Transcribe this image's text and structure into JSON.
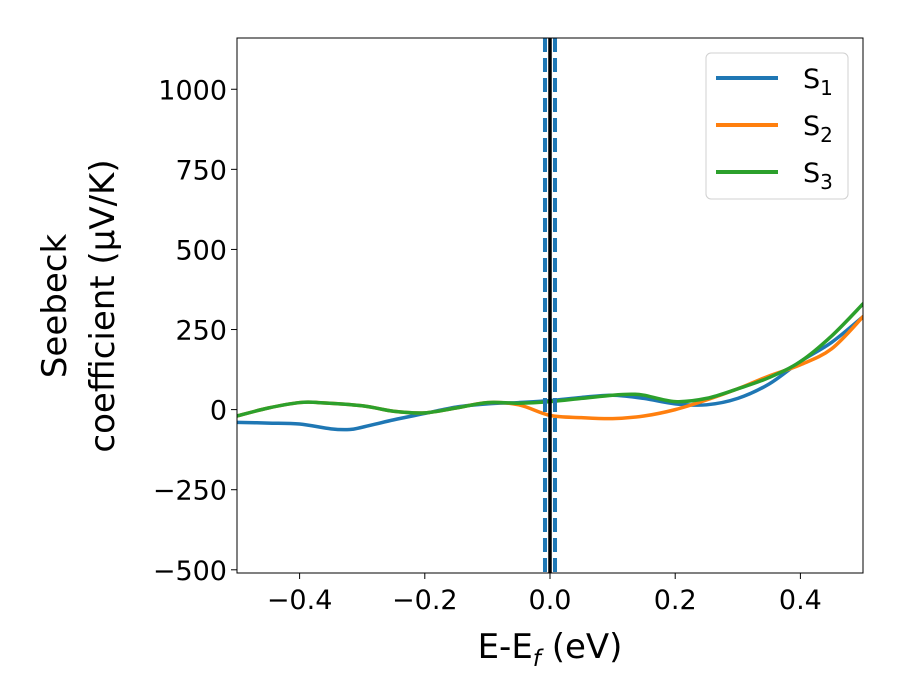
{
  "chart_data": {
    "type": "line",
    "xlabel": "E-E",
    "xlabel_sub": "f",
    "xlabel_unit": " (eV)",
    "ylabel_line1": "Seebeck",
    "ylabel_line2": "coefficient  (μV/K)",
    "xlim": [
      -0.5,
      0.5
    ],
    "ylim": [
      -510,
      1160
    ],
    "xticks": [
      -0.4,
      -0.2,
      0.0,
      0.2,
      0.4
    ],
    "xtick_labels": [
      "−0.4",
      "−0.2",
      "0.0",
      "0.2",
      "0.4"
    ],
    "yticks": [
      -500,
      -250,
      0,
      250,
      500,
      750,
      1000
    ],
    "ytick_labels": [
      "−500",
      "−250",
      "0",
      "250",
      "500",
      "750",
      "1000"
    ],
    "grid": false,
    "legend_position": "top-right",
    "vlines": [
      {
        "x": 0.0,
        "color": "#000000",
        "style": "solid"
      },
      {
        "x": -0.008,
        "color": "#1f77b4",
        "style": "dashed"
      },
      {
        "x": 0.008,
        "color": "#1f77b4",
        "style": "dashed"
      }
    ],
    "series": [
      {
        "name": "S",
        "sub": "1",
        "color": "#1f77b4",
        "x": [
          -0.5,
          -0.45,
          -0.4,
          -0.35,
          -0.32,
          -0.3,
          -0.25,
          -0.2,
          -0.15,
          -0.1,
          -0.05,
          0.0,
          0.05,
          0.1,
          0.15,
          0.2,
          0.25,
          0.3,
          0.35,
          0.4,
          0.45,
          0.5
        ],
        "y": [
          -40,
          -42,
          -45,
          -60,
          -62,
          -55,
          -32,
          -12,
          8,
          18,
          22,
          28,
          38,
          45,
          35,
          18,
          15,
          35,
          80,
          150,
          210,
          290
        ]
      },
      {
        "name": "S",
        "sub": "2",
        "color": "#ff7f0e",
        "x": [
          -0.5,
          -0.45,
          -0.4,
          -0.37,
          -0.3,
          -0.25,
          -0.2,
          -0.15,
          -0.1,
          -0.05,
          0.0,
          0.05,
          0.1,
          0.15,
          0.2,
          0.25,
          0.3,
          0.35,
          0.4,
          0.45,
          0.5
        ],
        "y": [
          -20,
          5,
          22,
          22,
          12,
          -5,
          -10,
          5,
          22,
          15,
          -18,
          -25,
          -28,
          -20,
          0,
          30,
          65,
          105,
          140,
          190,
          290
        ]
      },
      {
        "name": "S",
        "sub": "3",
        "color": "#2ca02c",
        "x": [
          -0.5,
          -0.45,
          -0.4,
          -0.37,
          -0.3,
          -0.25,
          -0.2,
          -0.15,
          -0.1,
          -0.05,
          0.0,
          0.05,
          0.1,
          0.13,
          0.15,
          0.2,
          0.25,
          0.3,
          0.35,
          0.4,
          0.45,
          0.5
        ],
        "y": [
          -20,
          5,
          22,
          22,
          12,
          -5,
          -10,
          5,
          22,
          20,
          25,
          35,
          45,
          48,
          45,
          25,
          35,
          65,
          100,
          150,
          230,
          330
        ]
      }
    ]
  }
}
